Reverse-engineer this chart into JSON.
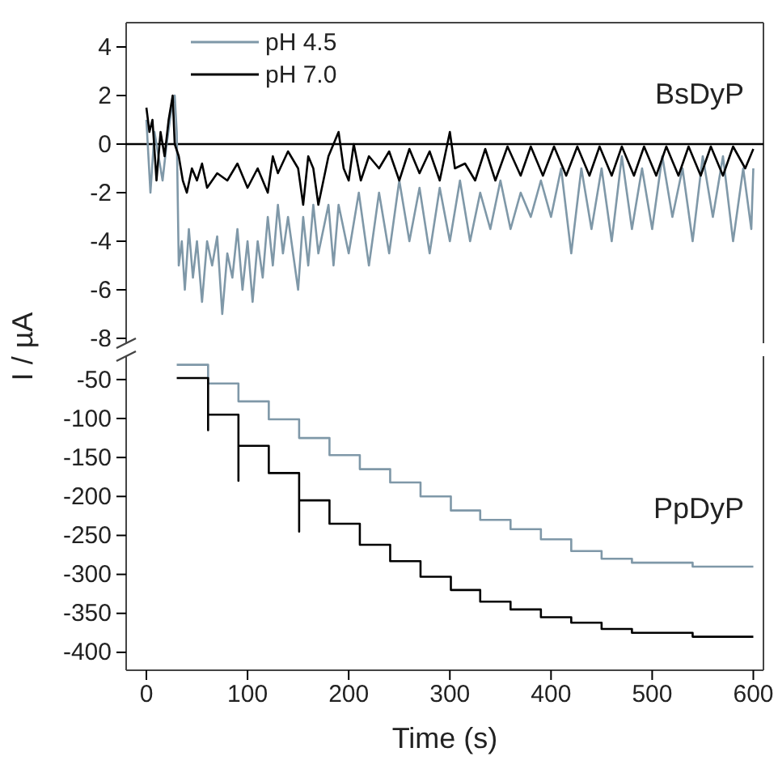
{
  "chart_data": [
    {
      "type": "line",
      "ylabel": "I / µA",
      "annotations": [
        "BsDyP"
      ],
      "xlim": [
        -20,
        610
      ],
      "ylim": [
        -8.2,
        5
      ],
      "yticks": [
        -8,
        -6,
        -4,
        -2,
        0,
        2,
        4
      ],
      "tick_labels": "y",
      "legend": "top left",
      "ref_lines": [
        {
          "axis": "y",
          "value": 0,
          "color": "#000000"
        }
      ],
      "series": [
        {
          "name": "pH 4.5",
          "color": "#7f98a8",
          "x": [
            0,
            4,
            8,
            12,
            16,
            20,
            25,
            28,
            30,
            32,
            35,
            38,
            42,
            46,
            50,
            55,
            60,
            65,
            70,
            75,
            80,
            85,
            90,
            95,
            100,
            105,
            110,
            115,
            120,
            125,
            130,
            135,
            140,
            150,
            155,
            160,
            165,
            170,
            180,
            185,
            190,
            200,
            210,
            220,
            230,
            240,
            250,
            260,
            270,
            280,
            290,
            300,
            310,
            320,
            330,
            340,
            350,
            360,
            370,
            380,
            390,
            400,
            410,
            420,
            430,
            440,
            450,
            460,
            470,
            480,
            490,
            500,
            510,
            520,
            530,
            540,
            550,
            560,
            570,
            580,
            590,
            598,
            600
          ],
          "values": [
            1,
            -2,
            0.5,
            -0.5,
            -1.5,
            0,
            1.5,
            2,
            0.5,
            -5,
            -4,
            -6,
            -3.5,
            -5.5,
            -4,
            -6.5,
            -4,
            -5,
            -3.8,
            -7,
            -4.5,
            -5.5,
            -3.5,
            -6,
            -4,
            -6.5,
            -4,
            -5.5,
            -3,
            -5,
            -2.5,
            -4.5,
            -3,
            -6,
            -3,
            -5,
            -2.5,
            -4.5,
            -2.5,
            -5,
            -2.5,
            -4.5,
            -2,
            -5,
            -2,
            -4.5,
            -1.5,
            -4,
            -1.8,
            -4.5,
            -1.8,
            -4,
            -1.5,
            -4,
            -2,
            -3.5,
            -1.5,
            -3.5,
            -2,
            -3,
            -1.5,
            -3,
            -1,
            -4.5,
            -1,
            -3.5,
            -1,
            -4,
            -0.5,
            -3.5,
            -1,
            -3.5,
            -0.5,
            -3,
            -1,
            -4,
            -0.5,
            -3,
            -0.5,
            -4,
            -1,
            -3.5,
            -1
          ]
        },
        {
          "name": "pH 7.0",
          "color": "#000000",
          "x": [
            0,
            3,
            6,
            10,
            14,
            18,
            22,
            26,
            28,
            32,
            36,
            40,
            45,
            50,
            55,
            60,
            70,
            80,
            90,
            100,
            110,
            120,
            125,
            130,
            140,
            150,
            155,
            160,
            165,
            170,
            180,
            190,
            195,
            200,
            205,
            212,
            220,
            230,
            240,
            250,
            260,
            270,
            280,
            290,
            300,
            305,
            315,
            325,
            335,
            345,
            357,
            370,
            380,
            392,
            403,
            415,
            426,
            438,
            448,
            460,
            470,
            482,
            492,
            504,
            514,
            526,
            536,
            548,
            558,
            570,
            580,
            592,
            600
          ],
          "values": [
            1.5,
            0.5,
            1,
            -1.5,
            0.5,
            -0.5,
            1,
            2,
            0,
            -0.5,
            -1.5,
            -2,
            -1,
            -1.5,
            -0.8,
            -1.8,
            -1.2,
            -1.5,
            -0.8,
            -1.8,
            -1,
            -2,
            -0.5,
            -1.2,
            -0.3,
            -1,
            -2.5,
            -0.5,
            -1,
            -2.5,
            -0.5,
            0.5,
            -1,
            -1.5,
            0,
            -1.5,
            -0.5,
            -1,
            -0.3,
            -1.5,
            -0.2,
            -1.2,
            -0.3,
            -1.5,
            0.5,
            -1,
            -0.8,
            -1.5,
            -0.2,
            -1.5,
            -0.1,
            -1.3,
            -0.1,
            -1.3,
            -0.1,
            -1.3,
            -0.1,
            -1.3,
            -0.1,
            -1.3,
            -0.1,
            -1.3,
            -0.1,
            -1.3,
            -0.1,
            -1.3,
            -0.1,
            -1.3,
            -0.1,
            -1.3,
            -0.1,
            -1,
            -0.2
          ]
        }
      ]
    },
    {
      "type": "line",
      "xlabel": "Time (s)",
      "annotations": [
        "PpDyP"
      ],
      "xlim": [
        -20,
        610
      ],
      "xticks": [
        0,
        100,
        200,
        300,
        400,
        500,
        600
      ],
      "ylim": [
        -423,
        -20
      ],
      "yticks": [
        -50,
        -100,
        -150,
        -200,
        -250,
        -300,
        -350,
        -400
      ],
      "series": [
        {
          "color": "#7f98a8",
          "x": [
            30,
            61,
            61,
            91,
            91,
            121,
            121,
            151,
            151,
            181,
            181,
            211,
            211,
            241,
            241,
            271,
            271,
            301,
            301,
            330,
            330,
            360,
            360,
            390,
            390,
            420,
            420,
            450,
            450,
            480,
            480,
            540,
            540,
            600
          ],
          "values": [
            -31,
            -31,
            -55,
            -55,
            -78,
            -78,
            -101,
            -101,
            -125,
            -125,
            -147,
            -147,
            -165,
            -165,
            -182,
            -182,
            -200,
            -200,
            -218,
            -218,
            -230,
            -230,
            -242,
            -242,
            -255,
            -255,
            -270,
            -270,
            -280,
            -280,
            -285,
            -285,
            -290,
            -290
          ]
        },
        {
          "color": "#000000",
          "x": [
            30,
            61,
            61,
            61,
            91,
            91,
            91,
            121,
            121,
            151,
            151,
            151,
            181,
            181,
            211,
            211,
            241,
            241,
            271,
            271,
            301,
            301,
            330,
            330,
            360,
            360,
            390,
            390,
            420,
            420,
            450,
            450,
            480,
            480,
            540,
            540,
            600
          ],
          "values": [
            -48,
            -48,
            -115,
            -95,
            -95,
            -180,
            -135,
            -135,
            -170,
            -170,
            -245,
            -205,
            -205,
            -235,
            -235,
            -262,
            -262,
            -283,
            -283,
            -303,
            -303,
            -320,
            -320,
            -335,
            -335,
            -345,
            -345,
            -355,
            -355,
            -362,
            -362,
            -370,
            -370,
            -375,
            -375,
            -380,
            -380
          ]
        }
      ]
    }
  ]
}
